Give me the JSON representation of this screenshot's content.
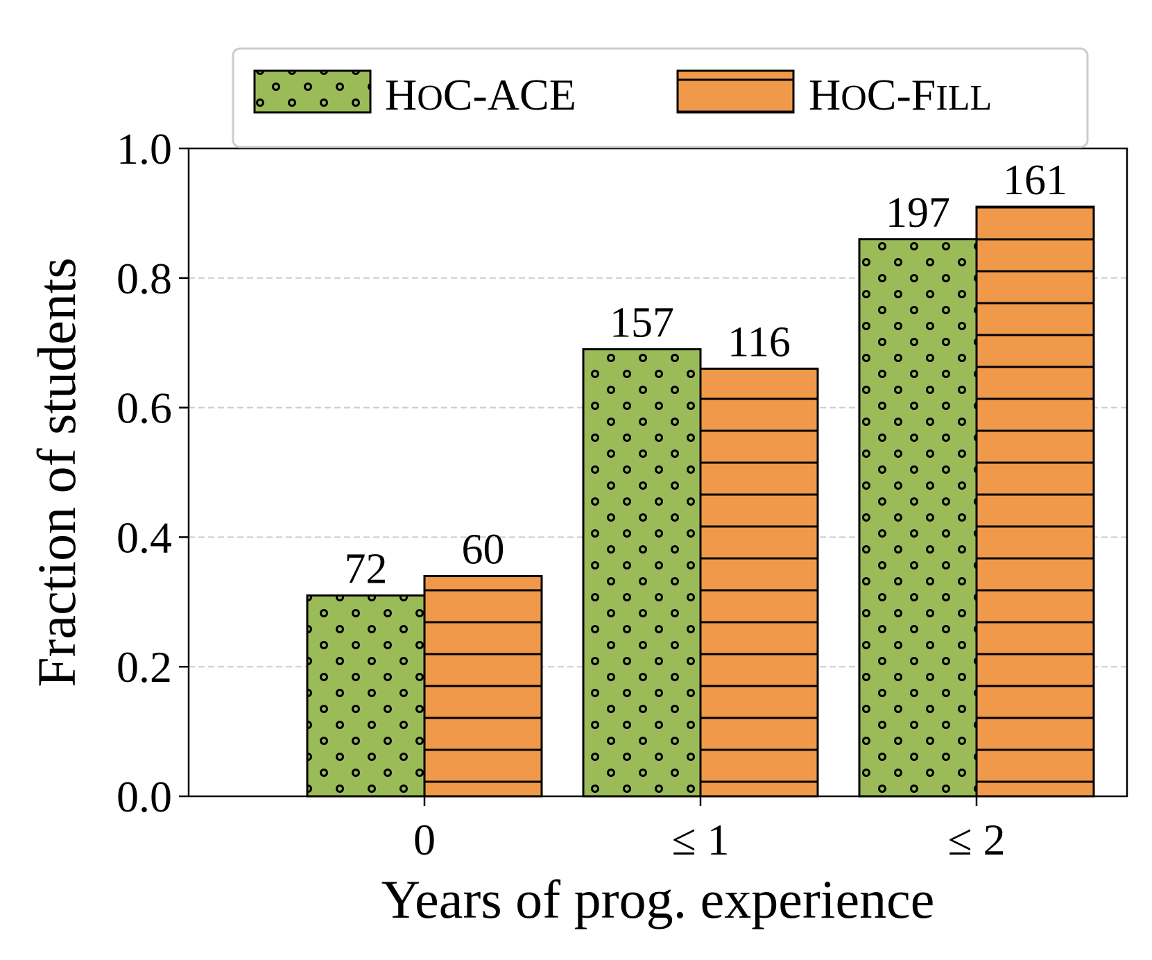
{
  "chart_data": {
    "type": "bar",
    "title": "",
    "xlabel": "Years of prog. experience",
    "ylabel": "Fraction of students",
    "categories": [
      "0",
      "≤ 1",
      "≤ 2"
    ],
    "ylim": [
      0,
      1.0
    ],
    "yticks": [
      "0.0",
      "0.2",
      "0.4",
      "0.6",
      "0.8",
      "1.0"
    ],
    "grid": "horizontal dashed",
    "legend_position": "top",
    "series": [
      {
        "name": "HoC-ACE",
        "legend_parts": [
          {
            "t": "H",
            "big": true
          },
          {
            "t": "O",
            "big": false
          },
          {
            "t": "C-ACE",
            "big": true
          }
        ],
        "color": "#9bbb59",
        "pattern": "dots",
        "values": [
          0.31,
          0.69,
          0.86
        ],
        "labels": [
          "72",
          "157",
          "197"
        ]
      },
      {
        "name": "HoC-Fill",
        "legend_parts": [
          {
            "t": "H",
            "big": true
          },
          {
            "t": "O",
            "big": false
          },
          {
            "t": "C-F",
            "big": true
          },
          {
            "t": "ILL",
            "big": false
          }
        ],
        "color": "#f0994a",
        "pattern": "hlines",
        "values": [
          0.34,
          0.66,
          0.91
        ],
        "labels": [
          "60",
          "116",
          "161"
        ]
      }
    ]
  }
}
